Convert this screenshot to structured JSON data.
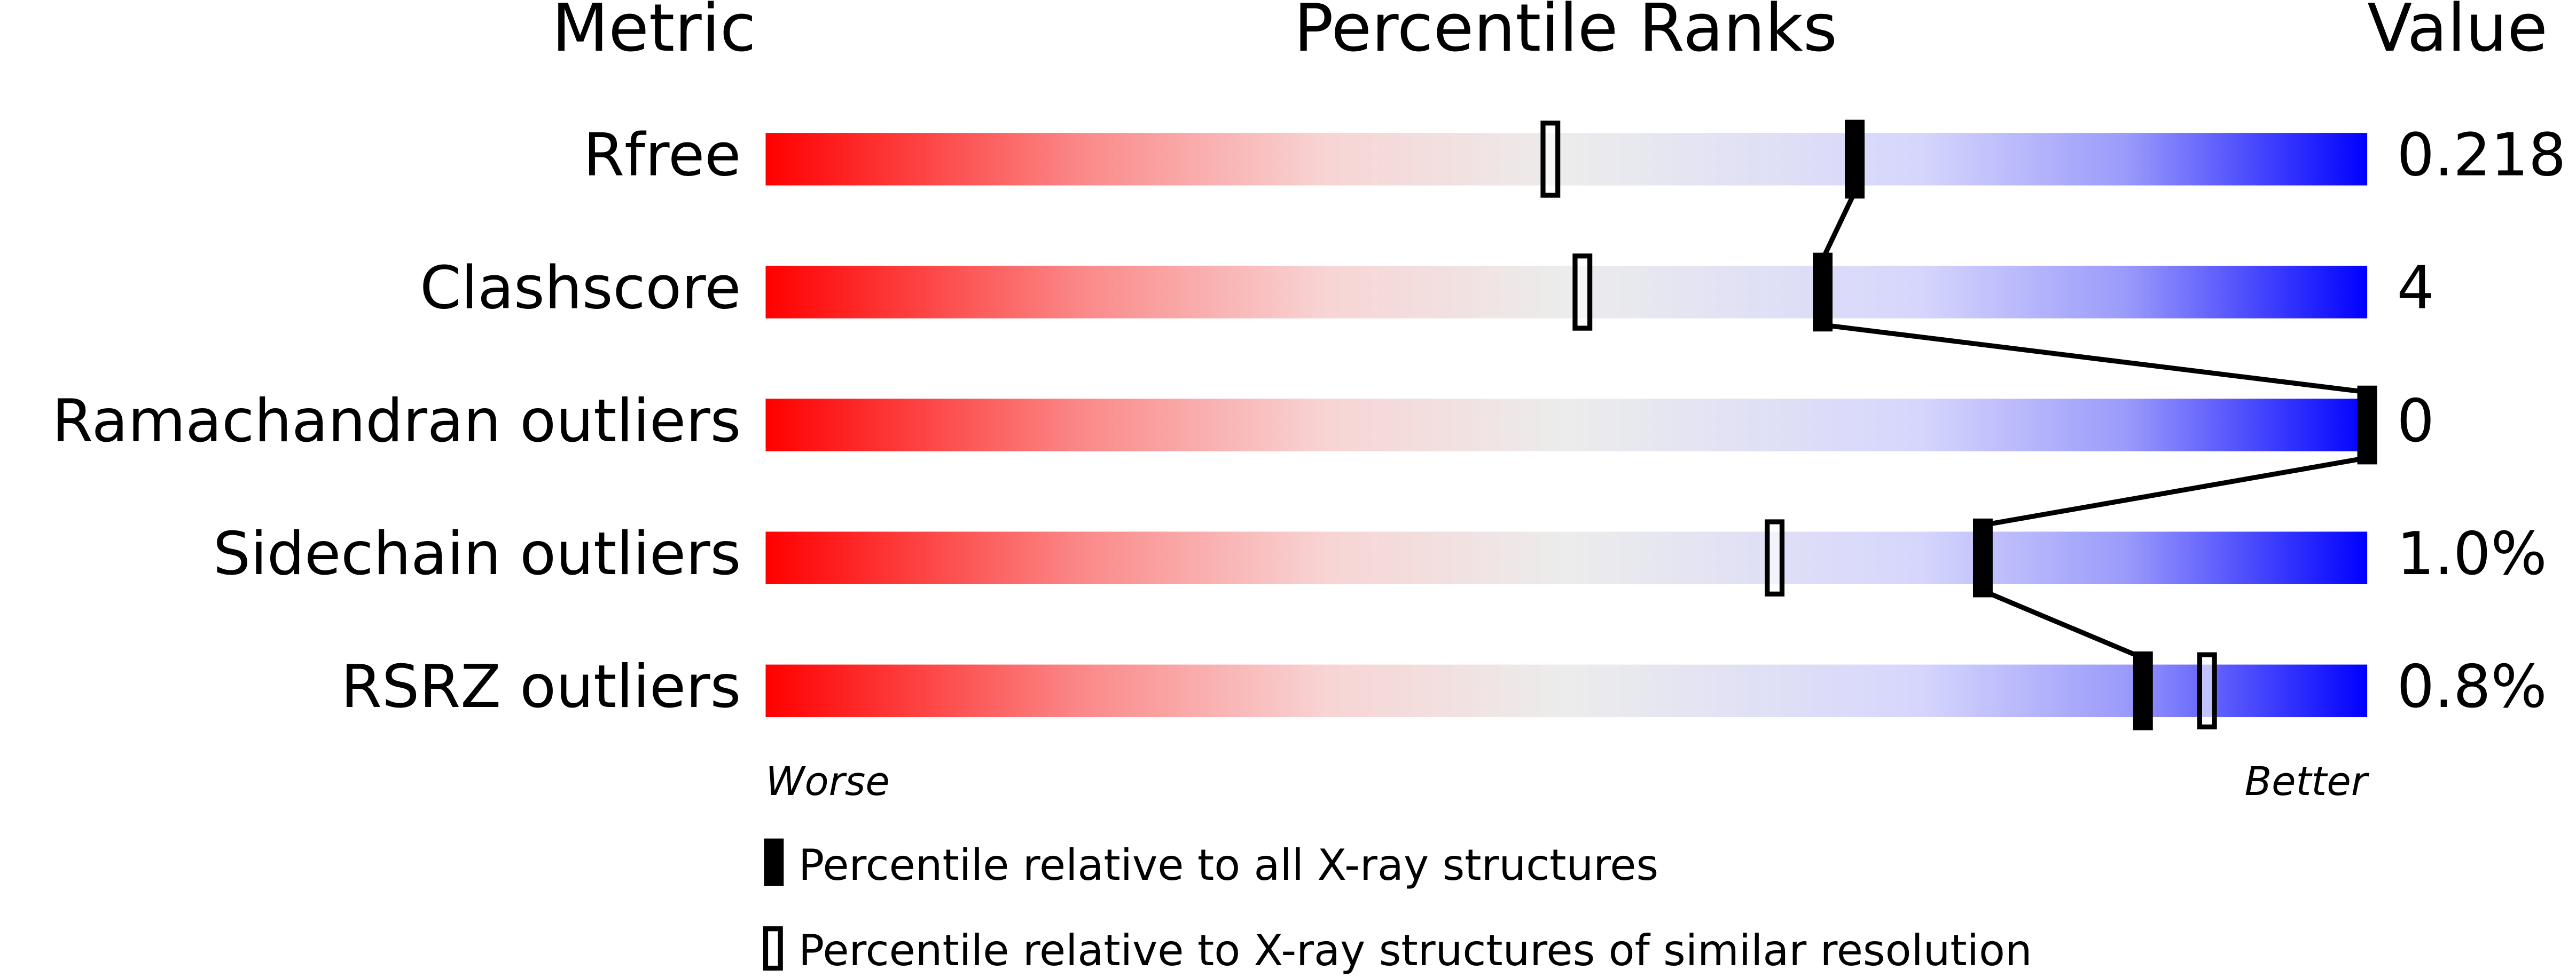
{
  "chart_data": {
    "type": "percentile_slider",
    "headers": [
      "Metric",
      "Percentile Ranks",
      "Value"
    ],
    "categories": [
      "Rfree",
      "Clashscore",
      "Ramachandran outliers",
      "Sidechain outliers",
      "RSRZ outliers"
    ],
    "metric_values": [
      "0.218",
      "4",
      "0",
      "1.0%",
      "0.8%"
    ],
    "xlim": [
      0,
      100
    ],
    "scale_labels": [
      "Worse",
      "Better"
    ],
    "series": [
      {
        "name": "Percentile relative to all X-ray structures",
        "color": "#000000",
        "values": [
          68,
          66,
          100,
          76,
          86
        ]
      },
      {
        "name": "Percentile relative to X-ray structures of similar resolution",
        "color": "#ffffff",
        "values": [
          49,
          51,
          100,
          63,
          90
        ]
      }
    ]
  }
}
